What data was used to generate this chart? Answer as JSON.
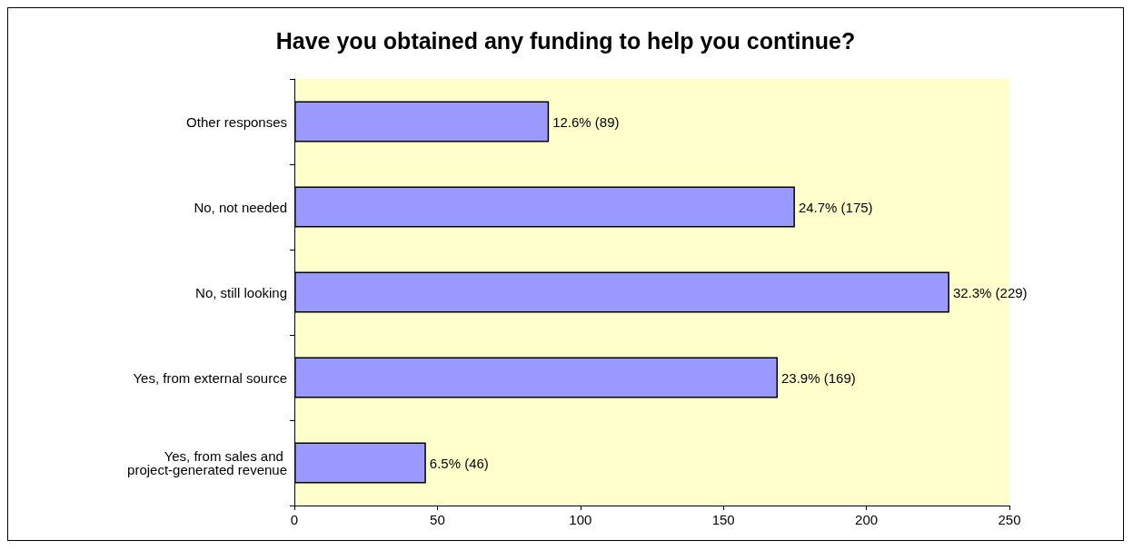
{
  "chart_data": {
    "type": "bar",
    "orientation": "horizontal",
    "title": "Have you obtained any funding to help you continue?",
    "categories": [
      "Other responses",
      "No, not needed",
      "No, still looking",
      "Yes, from external source",
      "Yes, from sales and project-generated revenue"
    ],
    "values": [
      89,
      175,
      229,
      169,
      46
    ],
    "value_labels": [
      "12.6% (89)",
      "24.7% (175)",
      "32.3% (229)",
      "23.9% (169)",
      "6.5% (46)"
    ],
    "color": "#9999ff",
    "xlim": [
      0,
      250
    ],
    "xticks": [
      0,
      50,
      100,
      150,
      200,
      250
    ],
    "grid": false
  }
}
